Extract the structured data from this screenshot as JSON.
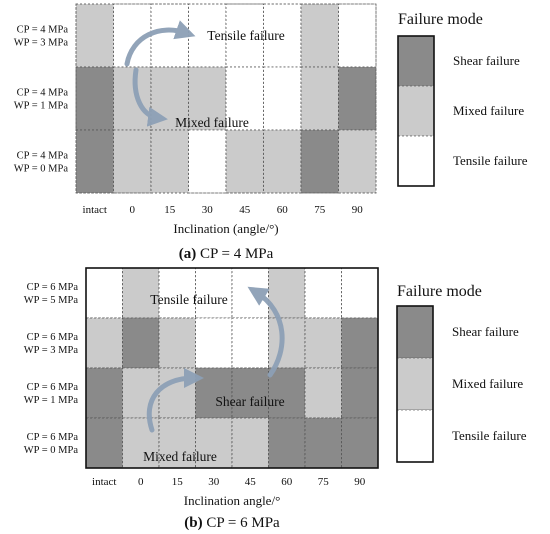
{
  "colors": {
    "shear": "#8a8a8a",
    "mixed": "#cbcbcb",
    "tensile": "#ffffff",
    "arrow": "#8da0b6"
  },
  "chart_data": [
    {
      "type": "heatmap",
      "caption_letter": "(a)",
      "caption_rest": " CP = 4 MPa",
      "xlabel": "Inclination (angle/°)",
      "categories": [
        "intact",
        "0",
        "15",
        "30",
        "45",
        "60",
        "75",
        "90"
      ],
      "rows": [
        {
          "label_cp": "CP = 4 MPa",
          "label_wp": "WP = 3 MPa",
          "cells": [
            "mixed",
            "tensile",
            "tensile",
            "tensile",
            "tensile",
            "tensile",
            "mixed",
            "tensile"
          ]
        },
        {
          "label_cp": "CP = 4 MPa",
          "label_wp": "WP = 1 MPa",
          "cells": [
            "shear",
            "mixed",
            "mixed",
            "mixed",
            "tensile",
            "tensile",
            "mixed",
            "shear"
          ]
        },
        {
          "label_cp": "CP = 4 MPa",
          "label_wp": "WP = 0 MPa",
          "cells": [
            "shear",
            "mixed",
            "mixed",
            "tensile",
            "mixed",
            "mixed",
            "shear",
            "mixed"
          ]
        }
      ],
      "annotations": [
        "Tensile failure",
        "Mixed failure"
      ],
      "legend": {
        "title": "Failure mode",
        "entries": [
          "Shear failure",
          "Mixed failure",
          "Tensile failure"
        ]
      }
    },
    {
      "type": "heatmap",
      "caption_letter": "(b)",
      "caption_rest": " CP = 6 MPa",
      "xlabel": "Inclination angle/°",
      "categories": [
        "intact",
        "0",
        "15",
        "30",
        "45",
        "60",
        "75",
        "90"
      ],
      "rows": [
        {
          "label_cp": "CP = 6 MPa",
          "label_wp": "WP = 5 MPa",
          "cells": [
            "tensile",
            "mixed",
            "tensile",
            "tensile",
            "tensile",
            "mixed",
            "tensile",
            "tensile"
          ]
        },
        {
          "label_cp": "CP = 6 MPa",
          "label_wp": "WP = 3 MPa",
          "cells": [
            "mixed",
            "shear",
            "mixed",
            "tensile",
            "tensile",
            "mixed",
            "mixed",
            "shear"
          ]
        },
        {
          "label_cp": "CP = 6 MPa",
          "label_wp": "WP = 1 MPa",
          "cells": [
            "shear",
            "mixed",
            "mixed",
            "shear",
            "shear",
            "shear",
            "mixed",
            "shear"
          ]
        },
        {
          "label_cp": "CP = 6 MPa",
          "label_wp": "WP = 0 MPa",
          "cells": [
            "shear",
            "mixed",
            "mixed",
            "mixed",
            "mixed",
            "shear",
            "shear",
            "shear"
          ]
        }
      ],
      "annotations": [
        "Tensile failure",
        "Shear failure",
        "Mixed failure"
      ],
      "legend": {
        "title": "Failure mode",
        "entries": [
          "Shear failure",
          "Mixed failure",
          "Tensile failure"
        ]
      }
    }
  ]
}
